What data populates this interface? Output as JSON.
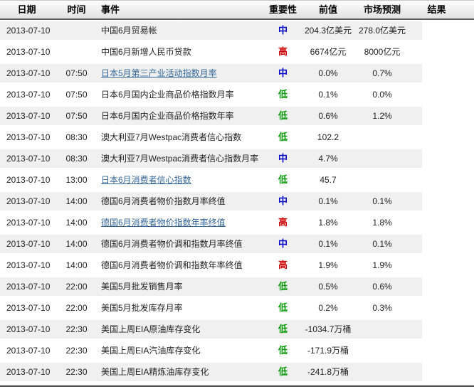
{
  "header": {
    "columns": [
      "日期",
      "时间",
      "事件",
      "重要性",
      "前值",
      "市场预测",
      "结果"
    ]
  },
  "colors": {
    "importance_high": "#cc0000",
    "importance_medium": "#0000cc",
    "importance_low": "#009900",
    "link": "#336699",
    "stripe": "#f0f0f0",
    "header_rule": "#5e5e5e",
    "bottom_rule": "#4a4a4a"
  },
  "rows": [
    {
      "date": "2013-07-10",
      "time": "",
      "event": "中国6月贸易帐",
      "event_is_link": false,
      "importance": "中",
      "importance_level": "medium",
      "previous": "204.3亿美元",
      "forecast": "278.0亿美元",
      "result": ""
    },
    {
      "date": "2013-07-10",
      "time": "",
      "event": "中国6月新增人民币贷款",
      "event_is_link": false,
      "importance": "高",
      "importance_level": "high",
      "previous": "6674亿元",
      "forecast": "8000亿元",
      "result": ""
    },
    {
      "date": "2013-07-10",
      "time": "07:50",
      "event": "日本5月第三产业活动指数月率",
      "event_is_link": true,
      "importance": "中",
      "importance_level": "medium",
      "previous": "0.0%",
      "forecast": "0.7%",
      "result": ""
    },
    {
      "date": "2013-07-10",
      "time": "07:50",
      "event": "日本6月国内企业商品价格指数月率",
      "event_is_link": false,
      "importance": "低",
      "importance_level": "low",
      "previous": "0.1%",
      "forecast": "0.0%",
      "result": ""
    },
    {
      "date": "2013-07-10",
      "time": "07:50",
      "event": "日本6月国内企业商品价格指数年率",
      "event_is_link": false,
      "importance": "低",
      "importance_level": "low",
      "previous": "0.6%",
      "forecast": "1.2%",
      "result": ""
    },
    {
      "date": "2013-07-10",
      "time": "08:30",
      "event": "澳大利亚7月Westpac消费者信心指数",
      "event_is_link": false,
      "importance": "低",
      "importance_level": "low",
      "previous": "102.2",
      "forecast": "",
      "result": ""
    },
    {
      "date": "2013-07-10",
      "time": "08:30",
      "event": "澳大利亚7月Westpac消费者信心指数月率",
      "event_is_link": false,
      "importance": "中",
      "importance_level": "medium",
      "previous": "4.7%",
      "forecast": "",
      "result": ""
    },
    {
      "date": "2013-07-10",
      "time": "13:00",
      "event": "日本6月消费者信心指数",
      "event_is_link": true,
      "importance": "低",
      "importance_level": "low",
      "previous": "45.7",
      "forecast": "",
      "result": ""
    },
    {
      "date": "2013-07-10",
      "time": "14:00",
      "event": "德国6月消费者物价指数月率终值",
      "event_is_link": false,
      "importance": "中",
      "importance_level": "medium",
      "previous": "0.1%",
      "forecast": "0.1%",
      "result": ""
    },
    {
      "date": "2013-07-10",
      "time": "14:00",
      "event": "德国6月消费者物价指数年率终值",
      "event_is_link": true,
      "importance": "高",
      "importance_level": "high",
      "previous": "1.8%",
      "forecast": "1.8%",
      "result": ""
    },
    {
      "date": "2013-07-10",
      "time": "14:00",
      "event": "德国6月消费者物价调和指数月率终值",
      "event_is_link": false,
      "importance": "中",
      "importance_level": "medium",
      "previous": "0.1%",
      "forecast": "0.1%",
      "result": ""
    },
    {
      "date": "2013-07-10",
      "time": "14:00",
      "event": "德国6月消费者物价调和指数年率终值",
      "event_is_link": false,
      "importance": "高",
      "importance_level": "high",
      "previous": "1.9%",
      "forecast": "1.9%",
      "result": ""
    },
    {
      "date": "2013-07-10",
      "time": "22:00",
      "event": "美国5月批发销售月率",
      "event_is_link": false,
      "importance": "低",
      "importance_level": "low",
      "previous": "0.5%",
      "forecast": "0.6%",
      "result": ""
    },
    {
      "date": "2013-07-10",
      "time": "22:00",
      "event": "美国5月批发库存月率",
      "event_is_link": false,
      "importance": "低",
      "importance_level": "low",
      "previous": "0.2%",
      "forecast": "0.3%",
      "result": ""
    },
    {
      "date": "2013-07-10",
      "time": "22:30",
      "event": "美国上周EIA原油库存变化",
      "event_is_link": false,
      "importance": "低",
      "importance_level": "low",
      "previous": "-1034.7万桶",
      "forecast": "",
      "result": ""
    },
    {
      "date": "2013-07-10",
      "time": "22:30",
      "event": "美国上周EIA汽油库存变化",
      "event_is_link": false,
      "importance": "低",
      "importance_level": "low",
      "previous": "-171.9万桶",
      "forecast": "",
      "result": ""
    },
    {
      "date": "2013-07-10",
      "time": "22:30",
      "event": "美国上周EIA精炼油库存变化",
      "event_is_link": false,
      "importance": "低",
      "importance_level": "low",
      "previous": "-241.8万桶",
      "forecast": "",
      "result": ""
    }
  ]
}
